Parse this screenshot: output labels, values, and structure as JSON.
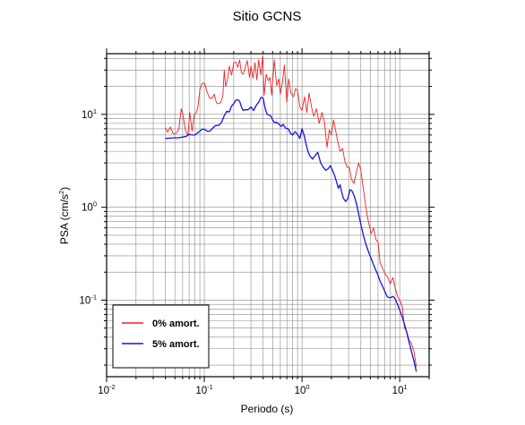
{
  "chart_data": {
    "type": "line",
    "title": "Sitio GCNS",
    "xlabel": "Periodo (s)",
    "ylabel": "PSA (cm/s",
    "ylabel_sup": "2",
    "ylabel_close": ")",
    "xscale": "log",
    "yscale": "log",
    "xlim": [
      0.01,
      20
    ],
    "ylim": [
      0.015,
      45
    ],
    "grid": true,
    "legend_position": "bottom-left",
    "x_ticks": [
      {
        "value": 0.01,
        "base": "10",
        "exp": "-2"
      },
      {
        "value": 0.1,
        "base": "10",
        "exp": "-1"
      },
      {
        "value": 1,
        "base": "10",
        "exp": "0"
      },
      {
        "value": 10,
        "base": "10",
        "exp": "1"
      }
    ],
    "y_ticks": [
      {
        "value": 0.1,
        "base": "10",
        "exp": "-1"
      },
      {
        "value": 1,
        "base": "10",
        "exp": "0"
      },
      {
        "value": 10,
        "base": "10",
        "exp": "1"
      }
    ],
    "series": [
      {
        "name": "0% amort.",
        "color": "#ee2222",
        "points": [
          [
            0.04,
            7.2
          ],
          [
            0.042,
            6.4
          ],
          [
            0.045,
            7.3
          ],
          [
            0.048,
            6.2
          ],
          [
            0.052,
            6.3
          ],
          [
            0.055,
            7.0
          ],
          [
            0.058,
            11.5
          ],
          [
            0.061,
            9.4
          ],
          [
            0.064,
            6.8
          ],
          [
            0.068,
            5.9
          ],
          [
            0.071,
            10.5
          ],
          [
            0.075,
            6.6
          ],
          [
            0.079,
            10.0
          ],
          [
            0.083,
            10.5
          ],
          [
            0.086,
            12.0
          ],
          [
            0.09,
            18.5
          ],
          [
            0.095,
            21.5
          ],
          [
            0.1,
            21.8
          ],
          [
            0.106,
            17.8
          ],
          [
            0.113,
            15.0
          ],
          [
            0.12,
            14.8
          ],
          [
            0.126,
            16.5
          ],
          [
            0.133,
            13.3
          ],
          [
            0.14,
            13.0
          ],
          [
            0.148,
            13.5
          ],
          [
            0.155,
            16.0
          ],
          [
            0.16,
            30.0
          ],
          [
            0.165,
            20.0
          ],
          [
            0.173,
            24.0
          ],
          [
            0.18,
            33.0
          ],
          [
            0.19,
            26.5
          ],
          [
            0.2,
            36.0
          ],
          [
            0.21,
            36.5
          ],
          [
            0.22,
            32.0
          ],
          [
            0.23,
            38.5
          ],
          [
            0.24,
            28.0
          ],
          [
            0.25,
            27.0
          ],
          [
            0.26,
            31.0
          ],
          [
            0.275,
            38.0
          ],
          [
            0.29,
            25.0
          ],
          [
            0.3,
            33.0
          ],
          [
            0.315,
            24.5
          ],
          [
            0.33,
            36.0
          ],
          [
            0.345,
            23.5
          ],
          [
            0.36,
            38.5
          ],
          [
            0.38,
            26.5
          ],
          [
            0.395,
            42.0
          ],
          [
            0.41,
            16.0
          ],
          [
            0.43,
            27.0
          ],
          [
            0.45,
            23.0
          ],
          [
            0.47,
            25.0
          ],
          [
            0.49,
            16.0
          ],
          [
            0.52,
            38.5
          ],
          [
            0.55,
            20.5
          ],
          [
            0.58,
            24.0
          ],
          [
            0.6,
            16.5
          ],
          [
            0.63,
            22.0
          ],
          [
            0.66,
            34.0
          ],
          [
            0.7,
            13.5
          ],
          [
            0.73,
            24.0
          ],
          [
            0.77,
            17.0
          ],
          [
            0.82,
            15.5
          ],
          [
            0.86,
            19.0
          ],
          [
            0.9,
            18.0
          ],
          [
            0.95,
            12.0
          ],
          [
            1.0,
            11.0
          ],
          [
            1.06,
            15.5
          ],
          [
            1.12,
            10.5
          ],
          [
            1.18,
            17.0
          ],
          [
            1.25,
            12.0
          ],
          [
            1.32,
            9.5
          ],
          [
            1.4,
            11.5
          ],
          [
            1.5,
            8.0
          ],
          [
            1.6,
            10.5
          ],
          [
            1.7,
            8.2
          ],
          [
            1.8,
            4.4
          ],
          [
            1.9,
            6.8
          ],
          [
            2.0,
            6.0
          ],
          [
            2.1,
            8.7
          ],
          [
            2.2,
            6.8
          ],
          [
            2.3,
            5.3
          ],
          [
            2.45,
            4.0
          ],
          [
            2.6,
            4.3
          ],
          [
            2.75,
            3.1
          ],
          [
            2.9,
            2.7
          ],
          [
            3.05,
            2.7
          ],
          [
            3.2,
            2.0
          ],
          [
            3.4,
            1.8
          ],
          [
            3.6,
            2.4
          ],
          [
            3.8,
            3.0
          ],
          [
            4.0,
            2.5
          ],
          [
            4.2,
            1.7
          ],
          [
            4.5,
            1.0
          ],
          [
            4.8,
            0.68
          ],
          [
            5.1,
            0.52
          ],
          [
            5.4,
            0.6
          ],
          [
            5.7,
            0.45
          ],
          [
            6.0,
            0.42
          ],
          [
            6.3,
            0.25
          ],
          [
            6.7,
            0.22
          ],
          [
            7.1,
            0.19
          ],
          [
            7.5,
            0.18
          ],
          [
            8.0,
            0.15
          ],
          [
            8.5,
            0.175
          ],
          [
            9.0,
            0.135
          ],
          [
            9.5,
            0.11
          ],
          [
            10.0,
            0.1
          ],
          [
            10.6,
            0.086
          ],
          [
            11.2,
            0.05
          ],
          [
            11.8,
            0.046
          ],
          [
            12.5,
            0.037
          ],
          [
            13.2,
            0.034
          ],
          [
            14.0,
            0.028
          ],
          [
            14.8,
            0.019
          ]
        ]
      },
      {
        "name": "5% amort.",
        "color": "#1515dd",
        "points": [
          [
            0.04,
            5.5
          ],
          [
            0.045,
            5.55
          ],
          [
            0.05,
            5.6
          ],
          [
            0.055,
            5.6
          ],
          [
            0.06,
            5.7
          ],
          [
            0.065,
            5.8
          ],
          [
            0.07,
            6.1
          ],
          [
            0.075,
            6.0
          ],
          [
            0.08,
            6.0
          ],
          [
            0.085,
            6.3
          ],
          [
            0.09,
            6.6
          ],
          [
            0.095,
            6.9
          ],
          [
            0.1,
            6.9
          ],
          [
            0.107,
            6.6
          ],
          [
            0.114,
            6.6
          ],
          [
            0.12,
            7.0
          ],
          [
            0.13,
            7.6
          ],
          [
            0.14,
            7.6
          ],
          [
            0.15,
            8.2
          ],
          [
            0.16,
            9.7
          ],
          [
            0.17,
            10.8
          ],
          [
            0.18,
            10.6
          ],
          [
            0.19,
            12.3
          ],
          [
            0.2,
            13.0
          ],
          [
            0.21,
            14.2
          ],
          [
            0.22,
            14.4
          ],
          [
            0.23,
            13.8
          ],
          [
            0.24,
            12.0
          ],
          [
            0.25,
            11.0
          ],
          [
            0.26,
            11.2
          ],
          [
            0.28,
            11.2
          ],
          [
            0.3,
            12.0
          ],
          [
            0.32,
            11.0
          ],
          [
            0.34,
            12.5
          ],
          [
            0.36,
            13.5
          ],
          [
            0.38,
            15.2
          ],
          [
            0.4,
            15.0
          ],
          [
            0.42,
            11.5
          ],
          [
            0.44,
            10.0
          ],
          [
            0.46,
            9.8
          ],
          [
            0.48,
            9.6
          ],
          [
            0.5,
            8.7
          ],
          [
            0.52,
            8.2
          ],
          [
            0.55,
            8.2
          ],
          [
            0.58,
            7.9
          ],
          [
            0.61,
            7.4
          ],
          [
            0.64,
            7.8
          ],
          [
            0.68,
            7.1
          ],
          [
            0.72,
            7.0
          ],
          [
            0.76,
            6.3
          ],
          [
            0.8,
            6.0
          ],
          [
            0.85,
            6.5
          ],
          [
            0.9,
            6.1
          ],
          [
            0.95,
            5.5
          ],
          [
            1.0,
            7.0
          ],
          [
            1.05,
            6.0
          ],
          [
            1.1,
            4.8
          ],
          [
            1.15,
            4.0
          ],
          [
            1.2,
            3.6
          ],
          [
            1.28,
            3.3
          ],
          [
            1.36,
            3.6
          ],
          [
            1.45,
            3.9
          ],
          [
            1.55,
            3.0
          ],
          [
            1.65,
            2.7
          ],
          [
            1.75,
            2.5
          ],
          [
            1.85,
            2.6
          ],
          [
            1.95,
            2.8
          ],
          [
            2.05,
            2.5
          ],
          [
            2.15,
            2.2
          ],
          [
            2.25,
            1.9
          ],
          [
            2.35,
            1.6
          ],
          [
            2.45,
            1.75
          ],
          [
            2.55,
            1.45
          ],
          [
            2.65,
            1.25
          ],
          [
            2.8,
            1.15
          ],
          [
            2.95,
            1.25
          ],
          [
            3.1,
            1.55
          ],
          [
            3.25,
            1.5
          ],
          [
            3.4,
            1.35
          ],
          [
            3.6,
            1.1
          ],
          [
            3.8,
            0.85
          ],
          [
            4.0,
            0.65
          ],
          [
            4.25,
            0.5
          ],
          [
            4.5,
            0.4
          ],
          [
            4.8,
            0.33
          ],
          [
            5.1,
            0.28
          ],
          [
            5.4,
            0.24
          ],
          [
            5.7,
            0.21
          ],
          [
            6.0,
            0.185
          ],
          [
            6.3,
            0.16
          ],
          [
            6.7,
            0.14
          ],
          [
            7.1,
            0.122
          ],
          [
            7.5,
            0.108
          ],
          [
            8.0,
            0.106
          ],
          [
            8.5,
            0.11
          ],
          [
            9.0,
            0.103
          ],
          [
            9.5,
            0.09
          ],
          [
            10.0,
            0.078
          ],
          [
            10.6,
            0.066
          ],
          [
            11.2,
            0.055
          ],
          [
            11.8,
            0.045
          ],
          [
            12.5,
            0.035
          ],
          [
            13.2,
            0.028
          ],
          [
            14.0,
            0.022
          ],
          [
            14.8,
            0.017
          ]
        ]
      }
    ]
  }
}
